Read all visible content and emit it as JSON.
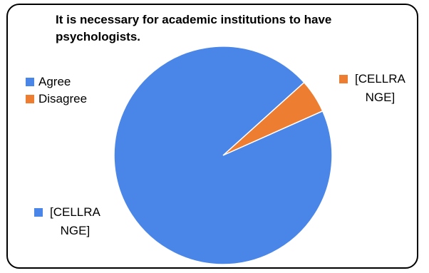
{
  "chart_data": {
    "type": "pie",
    "title": "It is necessary for academic institutions to have psychologists.",
    "categories": [
      "Agree",
      "Disagree"
    ],
    "values": [
      95,
      5
    ],
    "colors": [
      "#4a86e8",
      "#ed7d31"
    ],
    "data_labels": [
      "[CELLRANGE]",
      "[CELLRANGE]"
    ],
    "legend_position": "left"
  },
  "legend": {
    "agree": "Agree",
    "disagree": "Disagree"
  },
  "labels": {
    "disagree_line1": "[CELLRA",
    "disagree_line2": "NGE]",
    "agree_line1": "[CELLRA",
    "agree_line2": "NGE]"
  }
}
